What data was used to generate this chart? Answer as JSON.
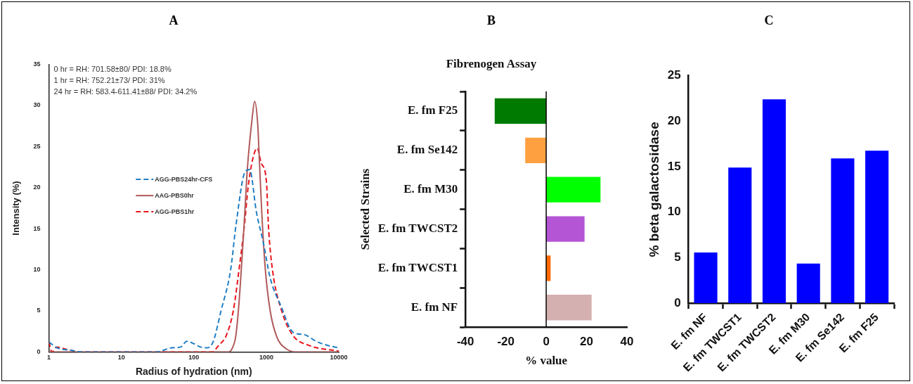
{
  "chart_data": [
    {
      "type": "line",
      "title": "A",
      "xlabel": "Radius of hydration (nm)",
      "ylabel": "Intensity (%)",
      "log": "x",
      "xlim": [
        1,
        10000
      ],
      "xticks": [
        1,
        10,
        100,
        1000,
        10000
      ],
      "ylim": [
        0,
        35
      ],
      "yticks": [
        0,
        5,
        10,
        15,
        20,
        25,
        30,
        35
      ],
      "grid": false,
      "legend": "center",
      "marker": "none",
      "annotations": [
        "0 hr = RH: 701.58±80/ PDI: 18.8%",
        "1 hr = RH: 752.21±73/ PDI: 31%",
        "24 hr = RH: 583.4-611.41±88/ PDI: 34.2%"
      ],
      "series": [
        {
          "name": "AGG-PBS24hr-CFS",
          "color": "#1f7fc4",
          "line_style": "dashed",
          "x": [
            1,
            1.3,
            2,
            3,
            30,
            50,
            66,
            80,
            100,
            123,
            151,
            184,
            237,
            322,
            380,
            508,
            588,
            731,
            910,
            1131,
            1627,
            2176,
            2705,
            3365,
            4842,
            6966,
            10000
          ],
          "values": [
            1.2,
            0.5,
            0.2,
            0,
            0,
            0.5,
            0.6,
            1.3,
            1.0,
            0.6,
            0.5,
            1.2,
            5,
            10,
            15.3,
            21.9,
            22.2,
            17,
            13.3,
            9,
            5.4,
            2.7,
            2.2,
            2.1,
            1.3,
            0.8,
            0.5
          ]
        },
        {
          "name": "AAG-PBS0hr",
          "color": "#b05a5a",
          "line_style": "solid",
          "x": [
            1,
            300,
            341,
            380,
            420,
            490,
            550,
            630,
            690,
            760,
            810,
            870,
            970,
            1131,
            1400,
            1870,
            2500,
            10000
          ],
          "values": [
            0,
            0,
            0.5,
            2,
            6,
            15,
            22.5,
            28,
            30.5,
            27.8,
            22.5,
            16.6,
            10,
            5,
            1.8,
            0.4,
            0,
            0
          ]
        },
        {
          "name": "AGG-PBS1hr",
          "color": "#e8141c",
          "line_style": "dashed",
          "x": [
            1,
            1.1,
            1.3,
            1.6,
            2,
            2.5,
            180,
            220,
            280,
            350,
            420,
            500,
            560,
            650,
            750,
            850,
            1000,
            1075,
            1216,
            1627,
            2335,
            3870,
            10000
          ],
          "values": [
            1.2,
            0,
            0.6,
            0.4,
            0.2,
            0,
            0,
            0.8,
            2,
            5,
            10,
            15.5,
            20,
            23.5,
            24.8,
            23,
            20.9,
            15,
            10,
            5,
            2,
            0.8,
            0.1
          ]
        }
      ]
    },
    {
      "type": "bar",
      "orientation": "horizontal",
      "title": "B",
      "subtitle": "Fibrenogen Assay",
      "xlabel": "% value",
      "ylabel": "Selected Strains",
      "xlim": [
        -40,
        40
      ],
      "xticks": [
        -40,
        -20,
        0,
        20,
        40
      ],
      "grid": false,
      "legend": false,
      "categories": [
        "E. fm F25",
        "E. fm Se142",
        "E. fm M30",
        "E. fm TWCST2",
        "E. fm TWCST1",
        "E. fm NF"
      ],
      "values": [
        -25.5,
        -10.4,
        26.9,
        19,
        2.2,
        22.5
      ],
      "colors": [
        "#007a00",
        "#ffa040",
        "#00ff00",
        "#b455d6",
        "#ff6a00",
        "#d4b0b0"
      ],
      "ref_lines": [
        {
          "axis": "x",
          "value": 0,
          "color": "#000000"
        }
      ]
    },
    {
      "type": "bar",
      "title": "C",
      "ylabel": "% beta galactosidase",
      "ylim": [
        0,
        25
      ],
      "yticks": [
        0,
        5,
        10,
        15,
        20,
        25
      ],
      "grid": false,
      "legend": false,
      "categories": [
        "E. fm NF",
        "E. fm TWCST1",
        "E. fm TWCST2",
        "E. fm M30",
        "E. fm Se142",
        "E. fm F25"
      ],
      "values": [
        5.57,
        14.9,
        22.4,
        4.35,
        15.9,
        16.75
      ],
      "color": "#0000ff"
    }
  ]
}
